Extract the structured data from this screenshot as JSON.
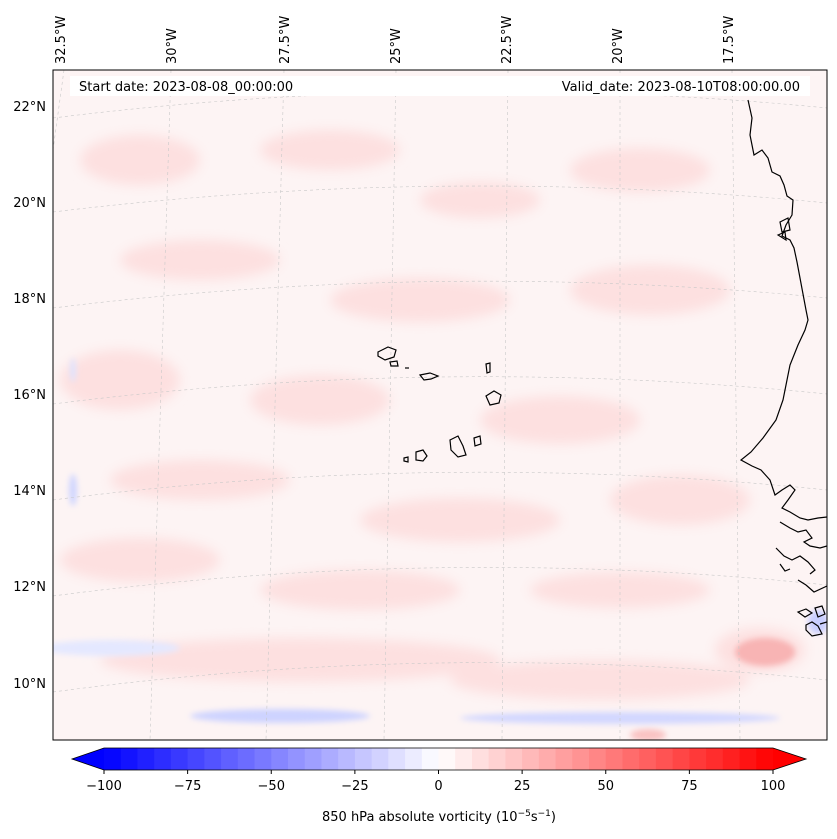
{
  "map": {
    "start_label": "Start date: 2023-08-08_00:00:00",
    "valid_label": "Valid_date: 2023-08-10T08:00:00.00",
    "lon_labels": [
      "32.5°W",
      "30°W",
      "27.5°W",
      "25°W",
      "22.5°W",
      "20°W",
      "17.5°W"
    ],
    "lat_labels": [
      "22°N",
      "20°N",
      "18°N",
      "16°N",
      "14°N",
      "12°N",
      "10°N"
    ],
    "colorbar": {
      "label_prefix": "850 hPa absolute vorticity (10",
      "label_exp1": "−5",
      "label_mid": "s",
      "label_exp2": "−1",
      "label_suffix": ")",
      "ticks": [
        "−100",
        "−75",
        "−50",
        "−25",
        "0",
        "25",
        "50",
        "75",
        "100"
      ],
      "tick_values": [
        -100,
        -75,
        -50,
        -25,
        0,
        25,
        50,
        75,
        100
      ],
      "min": -100,
      "max": 100,
      "levels": 40,
      "neg_color": "#0000ff",
      "pos_color": "#ff0000",
      "mid_color": "#ffffff"
    },
    "colors": {
      "background_field": "#fdf3f3",
      "positive_tint": "#fde1e1",
      "negative_tint": "#dde2ff",
      "coastline": "#000000",
      "grid": "#c8c8c8"
    }
  }
}
